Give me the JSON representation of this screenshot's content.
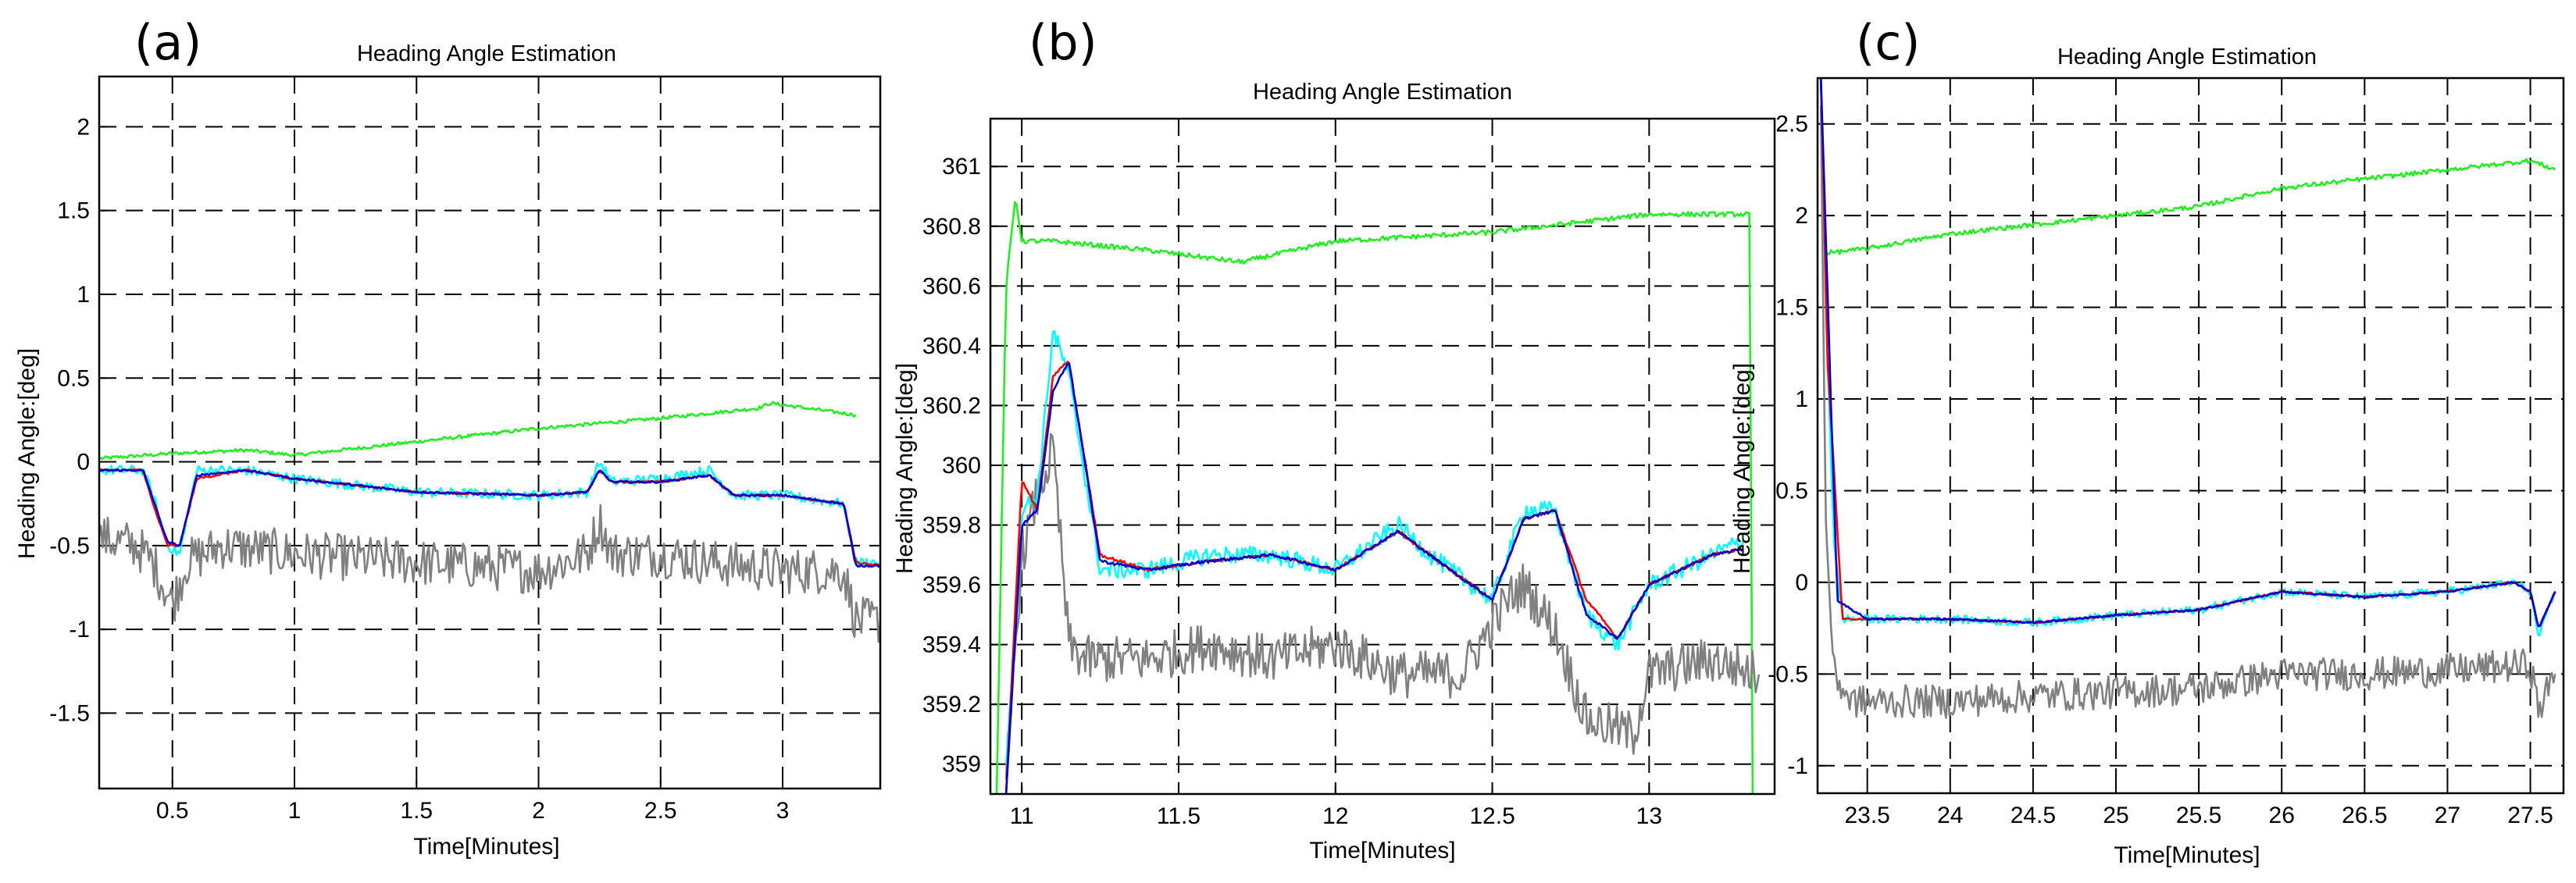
{
  "colors": {
    "green": "#22ee22",
    "cyan": "#00ffff",
    "red": "#ff0000",
    "blue": "#0000cc",
    "gray": "#808080"
  },
  "chart_data": [
    {
      "type": "line",
      "panel_label": "(a)",
      "title": "Heading Angle Estimation",
      "xlabel": "Time[Minutes]",
      "ylabel": "Heading Angle:[deg]",
      "xlim": [
        0.2,
        3.4
      ],
      "ylim": [
        -1.95,
        2.3
      ],
      "xticks": [
        0.5,
        1,
        1.5,
        2,
        2.5,
        3
      ],
      "xtick_labels": [
        "0.5",
        "1",
        "1.5",
        "2",
        "2.5",
        "3"
      ],
      "yticks": [
        -1.5,
        -1,
        -0.5,
        0,
        0.5,
        1,
        1.5,
        2
      ],
      "ytick_labels": [
        "-1.5",
        "-1",
        "-0.5",
        "0",
        "0.5",
        "1",
        "1.5",
        "2"
      ],
      "series": [
        {
          "name": "green",
          "color": "#22ee22",
          "noise": 0.01,
          "x": [
            0.2,
            0.5,
            0.8,
            1.0,
            1.5,
            2.0,
            2.5,
            2.9,
            2.95,
            3.3
          ],
          "y": [
            0.02,
            0.05,
            0.07,
            0.04,
            0.12,
            0.2,
            0.26,
            0.32,
            0.35,
            0.28
          ]
        },
        {
          "name": "gray",
          "color": "#808080",
          "noise": 0.14,
          "x": [
            0.2,
            0.35,
            0.42,
            0.5,
            0.56,
            0.7,
            1.0,
            1.5,
            2.0,
            2.2,
            2.25,
            2.3,
            2.5,
            2.7,
            3.0,
            3.25,
            3.3,
            3.4
          ],
          "y": [
            -0.45,
            -0.5,
            -0.6,
            -0.85,
            -0.6,
            -0.5,
            -0.55,
            -0.6,
            -0.65,
            -0.55,
            -0.35,
            -0.55,
            -0.55,
            -0.6,
            -0.65,
            -0.65,
            -0.95,
            -0.95
          ]
        },
        {
          "name": "cyan",
          "color": "#00ffff",
          "noise": 0.03,
          "x": [
            0.2,
            0.38,
            0.42,
            0.48,
            0.53,
            0.6,
            0.8,
            1.0,
            1.5,
            2.0,
            2.2,
            2.25,
            2.3,
            2.5,
            2.7,
            2.8,
            3.0,
            3.25,
            3.3,
            3.4
          ],
          "y": [
            -0.05,
            -0.05,
            -0.2,
            -0.5,
            -0.55,
            -0.05,
            -0.05,
            -0.1,
            -0.18,
            -0.2,
            -0.18,
            0.0,
            -0.12,
            -0.1,
            -0.05,
            -0.2,
            -0.2,
            -0.25,
            -0.6,
            -0.6
          ]
        },
        {
          "name": "red",
          "color": "#ff0000",
          "noise": 0.006,
          "x": [
            0.2,
            0.38,
            0.42,
            0.48,
            0.53,
            0.6,
            0.8,
            1.0,
            1.5,
            2.0,
            2.2,
            2.25,
            2.3,
            2.5,
            2.7,
            2.8,
            3.0,
            3.25,
            3.3,
            3.4
          ],
          "y": [
            -0.05,
            -0.05,
            -0.25,
            -0.5,
            -0.5,
            -0.1,
            -0.05,
            -0.1,
            -0.18,
            -0.2,
            -0.18,
            -0.05,
            -0.12,
            -0.12,
            -0.08,
            -0.2,
            -0.2,
            -0.25,
            -0.6,
            -0.62
          ]
        },
        {
          "name": "blue",
          "color": "#0000cc",
          "noise": 0.006,
          "x": [
            0.2,
            0.38,
            0.42,
            0.48,
            0.53,
            0.6,
            0.8,
            1.0,
            1.5,
            2.0,
            2.2,
            2.25,
            2.3,
            2.5,
            2.7,
            2.8,
            3.0,
            3.25,
            3.3,
            3.4
          ],
          "y": [
            -0.05,
            -0.05,
            -0.22,
            -0.48,
            -0.5,
            -0.08,
            -0.05,
            -0.1,
            -0.18,
            -0.2,
            -0.18,
            -0.05,
            -0.12,
            -0.12,
            -0.08,
            -0.2,
            -0.2,
            -0.25,
            -0.62,
            -0.62
          ]
        }
      ]
    },
    {
      "type": "line",
      "panel_label": "(b)",
      "title": "Heading Angle Estimation",
      "xlabel": "Time[Minutes]",
      "ylabel": "Heading Angle:[deg]",
      "xlim": [
        10.9,
        13.4
      ],
      "ylim": [
        358.9,
        361.16
      ],
      "xticks": [
        11,
        11.5,
        12,
        12.5,
        13
      ],
      "xtick_labels": [
        "11",
        "11.5",
        "12",
        "12.5",
        "13"
      ],
      "yticks": [
        359,
        359.2,
        359.4,
        359.6,
        359.8,
        360,
        360.2,
        360.4,
        360.6,
        360.8,
        361
      ],
      "ytick_labels": [
        "359",
        "359.2",
        "359.4",
        "359.6",
        "359.8",
        "360",
        "360.2",
        "360.4",
        "360.6",
        "360.8",
        "361"
      ],
      "series": [
        {
          "name": "green",
          "color": "#22ee22",
          "noise": 0.008,
          "x": [
            10.92,
            10.95,
            10.98,
            11.0,
            11.1,
            11.4,
            11.7,
            12.0,
            12.5,
            13.0,
            13.32,
            13.33
          ],
          "y": [
            358.9,
            360.6,
            360.9,
            360.75,
            360.75,
            360.72,
            360.68,
            360.75,
            360.78,
            360.84,
            360.84,
            358.9
          ]
        },
        {
          "name": "gray",
          "color": "#808080",
          "noise": 0.08,
          "x": [
            10.95,
            11.0,
            11.05,
            11.1,
            11.15,
            11.2,
            11.4,
            11.6,
            11.8,
            12.0,
            12.2,
            12.4,
            12.55,
            12.6,
            12.7,
            12.75,
            12.8,
            12.95,
            13.0,
            13.2,
            13.35
          ],
          "y": [
            358.95,
            359.7,
            359.9,
            360.05,
            359.4,
            359.35,
            359.35,
            359.4,
            359.35,
            359.4,
            359.3,
            359.3,
            359.55,
            359.6,
            359.45,
            359.3,
            359.15,
            359.1,
            359.3,
            359.35,
            359.3
          ]
        },
        {
          "name": "cyan",
          "color": "#00ffff",
          "noise": 0.03,
          "x": [
            10.95,
            11.0,
            11.05,
            11.1,
            11.15,
            11.25,
            11.4,
            11.6,
            11.8,
            12.0,
            12.2,
            12.3,
            12.5,
            12.6,
            12.7,
            12.8,
            12.9,
            13.0,
            13.2,
            13.3
          ],
          "y": [
            359.0,
            359.85,
            359.9,
            360.45,
            360.3,
            359.65,
            359.65,
            359.7,
            359.7,
            359.65,
            359.8,
            359.7,
            359.55,
            359.85,
            359.85,
            359.5,
            359.4,
            359.6,
            359.7,
            359.75
          ]
        },
        {
          "name": "red",
          "color": "#ff0000",
          "noise": 0.005,
          "x": [
            10.95,
            11.0,
            11.05,
            11.1,
            11.15,
            11.25,
            11.4,
            11.6,
            11.8,
            12.0,
            12.2,
            12.3,
            12.5,
            12.6,
            12.7,
            12.8,
            12.9,
            13.0,
            13.2,
            13.3
          ],
          "y": [
            358.9,
            359.95,
            359.85,
            360.3,
            360.35,
            359.7,
            359.65,
            359.68,
            359.7,
            359.65,
            359.78,
            359.7,
            359.55,
            359.82,
            359.85,
            359.55,
            359.42,
            359.6,
            359.7,
            359.72
          ]
        },
        {
          "name": "blue",
          "color": "#0000cc",
          "noise": 0.005,
          "x": [
            10.95,
            11.0,
            11.05,
            11.1,
            11.15,
            11.25,
            11.4,
            11.6,
            11.8,
            12.0,
            12.2,
            12.3,
            12.5,
            12.6,
            12.7,
            12.8,
            12.9,
            13.0,
            13.2,
            13.3
          ],
          "y": [
            358.9,
            359.8,
            359.85,
            360.25,
            360.35,
            359.68,
            359.65,
            359.68,
            359.7,
            359.65,
            359.78,
            359.7,
            359.55,
            359.82,
            359.85,
            359.5,
            359.42,
            359.6,
            359.7,
            359.72
          ]
        }
      ]
    },
    {
      "type": "line",
      "panel_label": "(c)",
      "title": "Heading Angle Estimation",
      "xlabel": "Time[Minutes]",
      "ylabel": "Heading Angle:[deg]",
      "xlim": [
        23.2,
        27.7
      ],
      "ylim": [
        -1.15,
        2.75
      ],
      "xticks": [
        23.5,
        24,
        24.5,
        25,
        25.5,
        26,
        26.5,
        27,
        27.5
      ],
      "xtick_labels": [
        "23.5",
        "24",
        "24.5",
        "25",
        "25.5",
        "26",
        "26.5",
        "27",
        "27.5"
      ],
      "yticks": [
        -1,
        -0.5,
        0,
        0.5,
        1,
        1.5,
        2,
        2.5
      ],
      "ytick_labels": [
        "-1",
        "-0.5",
        "0",
        "0.5",
        "1",
        "1.5",
        "2",
        "2.5"
      ],
      "series": [
        {
          "name": "green",
          "color": "#22ee22",
          "noise": 0.012,
          "x": [
            23.22,
            23.25,
            23.3,
            23.5,
            24.0,
            24.5,
            25.0,
            25.5,
            26.0,
            26.5,
            27.0,
            27.5,
            27.65
          ],
          "y": [
            2.75,
            1.8,
            1.8,
            1.82,
            1.9,
            1.95,
            2.0,
            2.05,
            2.15,
            2.2,
            2.25,
            2.3,
            2.25
          ]
        },
        {
          "name": "gray",
          "color": "#808080",
          "noise": 0.09,
          "x": [
            23.22,
            23.25,
            23.3,
            23.4,
            24.0,
            24.5,
            25.0,
            25.5,
            26.0,
            26.5,
            27.0,
            27.5,
            27.55,
            27.65
          ],
          "y": [
            2.6,
            0.3,
            -0.5,
            -0.65,
            -0.65,
            -0.62,
            -0.6,
            -0.58,
            -0.5,
            -0.5,
            -0.48,
            -0.45,
            -0.7,
            -0.5
          ]
        },
        {
          "name": "cyan",
          "color": "#00ffff",
          "noise": 0.022,
          "x": [
            23.22,
            23.25,
            23.3,
            23.35,
            23.5,
            24.0,
            24.5,
            25.0,
            25.5,
            26.0,
            26.5,
            27.0,
            27.4,
            27.5,
            27.55,
            27.65
          ],
          "y": [
            2.75,
            1.5,
            0.2,
            -0.2,
            -0.2,
            -0.2,
            -0.22,
            -0.18,
            -0.15,
            -0.05,
            -0.08,
            -0.05,
            0.0,
            -0.05,
            -0.3,
            -0.05
          ]
        },
        {
          "name": "red",
          "color": "#ff0000",
          "noise": 0.005,
          "x": [
            23.22,
            23.26,
            23.3,
            23.35,
            23.5,
            24.0,
            24.5,
            25.0,
            25.5,
            26.0,
            26.5,
            27.0,
            27.4,
            27.5,
            27.55,
            27.65
          ],
          "y": [
            2.75,
            1.2,
            0.6,
            -0.2,
            -0.2,
            -0.2,
            -0.22,
            -0.18,
            -0.15,
            -0.05,
            -0.08,
            -0.05,
            0.0,
            -0.05,
            -0.25,
            -0.05
          ]
        },
        {
          "name": "blue",
          "color": "#0000cc",
          "noise": 0.005,
          "x": [
            23.22,
            23.26,
            23.28,
            23.32,
            23.5,
            24.0,
            24.5,
            25.0,
            25.5,
            26.0,
            26.5,
            27.0,
            27.4,
            27.5,
            27.55,
            27.65
          ],
          "y": [
            2.75,
            1.6,
            1.0,
            -0.1,
            -0.2,
            -0.2,
            -0.22,
            -0.18,
            -0.15,
            -0.05,
            -0.08,
            -0.05,
            0.0,
            -0.05,
            -0.25,
            -0.05
          ]
        }
      ]
    }
  ]
}
